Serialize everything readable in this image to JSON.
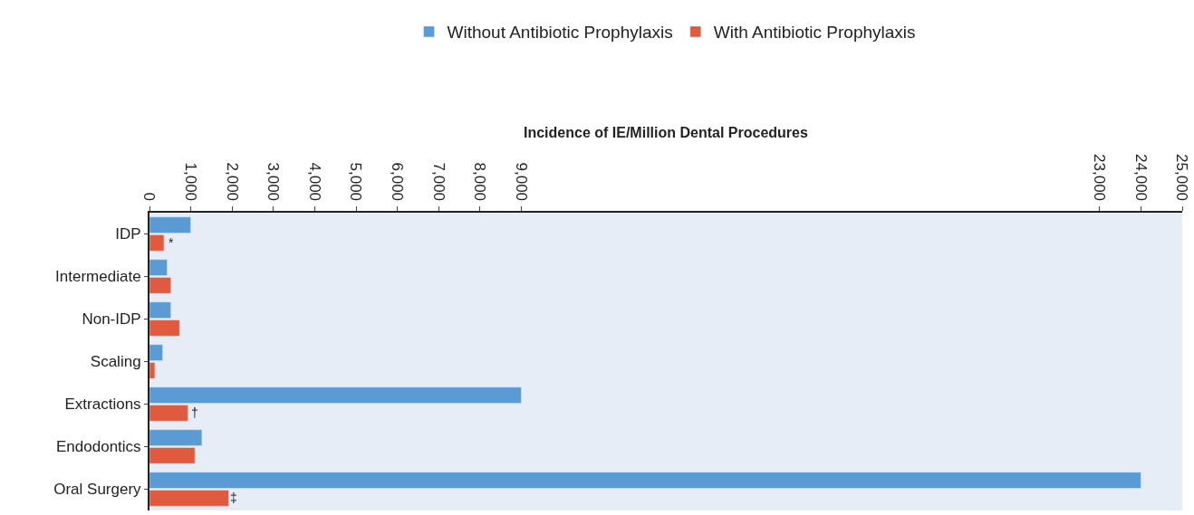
{
  "chart_data": {
    "type": "bar",
    "orientation": "horizontal",
    "xlabel": "Incidence of IE/Million Dental Procedures",
    "categories": [
      "IDP",
      "Intermediate",
      "Non-IDP",
      "Scaling",
      "Extractions",
      "Endodontics",
      "Oral Surgery"
    ],
    "series": [
      {
        "name": "Without Antibiotic Prophylaxis",
        "color": "#5b9bd5",
        "values": [
          1000,
          430,
          520,
          320,
          9000,
          1270,
          24000
        ]
      },
      {
        "name": "With Antibiotic Prophylaxis",
        "color": "#e05a3f",
        "values": [
          350,
          520,
          730,
          130,
          930,
          1100,
          1920
        ]
      }
    ],
    "xlim": [
      0,
      25000
    ],
    "xticks": [
      0,
      {
        "value": 1000,
        "label": "1,000"
      },
      {
        "value": 2000,
        "label": "2,000"
      },
      {
        "value": 3000,
        "label": "3,000"
      },
      {
        "value": 4000,
        "label": "4,000"
      },
      {
        "value": 5000,
        "label": "5,000"
      },
      {
        "value": 6000,
        "label": "6,000"
      },
      {
        "value": 7000,
        "label": "7,000"
      },
      {
        "value": 8000,
        "label": "8,000"
      },
      {
        "value": 9000,
        "label": "9,000"
      },
      {
        "value": 23000,
        "label": "23,000"
      },
      {
        "value": 24000,
        "label": "24,000"
      },
      {
        "value": 25000,
        "label": "25,000"
      }
    ],
    "annotations": [
      {
        "text": "*",
        "x": 530,
        "y": "IDP"
      },
      {
        "text": "†",
        "x": 1090,
        "y": "Extractions"
      },
      {
        "text": "‡",
        "x": 2050,
        "y": "Oral Surgery"
      }
    ],
    "legend": "top",
    "grid": false
  }
}
